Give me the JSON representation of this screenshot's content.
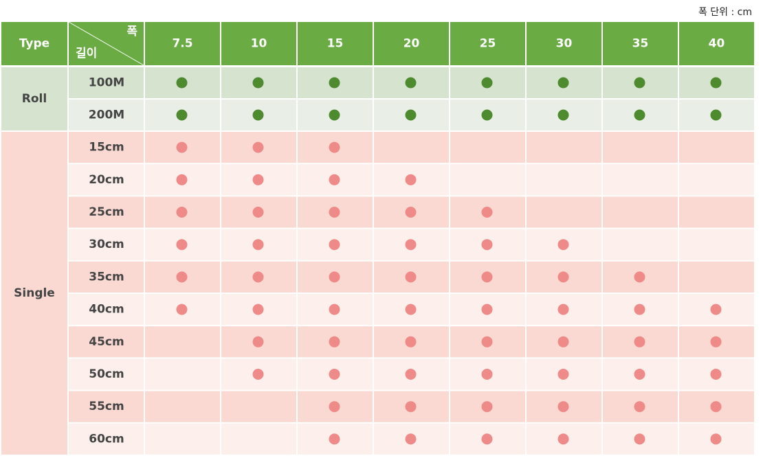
{
  "unit_note": "폭 단위 : cm",
  "header": {
    "type": "Type",
    "width_label": "폭",
    "length_label": "길이",
    "widths": [
      "7.5",
      "10",
      "15",
      "20",
      "25",
      "30",
      "35",
      "40"
    ]
  },
  "groups": [
    {
      "name": "Roll",
      "rows": [
        {
          "length": "100M",
          "available": [
            true,
            true,
            true,
            true,
            true,
            true,
            true,
            true
          ]
        },
        {
          "length": "200M",
          "available": [
            true,
            true,
            true,
            true,
            true,
            true,
            true,
            true
          ]
        }
      ]
    },
    {
      "name": "Single",
      "rows": [
        {
          "length": "15cm",
          "available": [
            true,
            true,
            true,
            false,
            false,
            false,
            false,
            false
          ]
        },
        {
          "length": "20cm",
          "available": [
            true,
            true,
            true,
            true,
            false,
            false,
            false,
            false
          ]
        },
        {
          "length": "25cm",
          "available": [
            true,
            true,
            true,
            true,
            true,
            false,
            false,
            false
          ]
        },
        {
          "length": "30cm",
          "available": [
            true,
            true,
            true,
            true,
            true,
            true,
            false,
            false
          ]
        },
        {
          "length": "35cm",
          "available": [
            true,
            true,
            true,
            true,
            true,
            true,
            true,
            false
          ]
        },
        {
          "length": "40cm",
          "available": [
            true,
            true,
            true,
            true,
            true,
            true,
            true,
            true
          ]
        },
        {
          "length": "45cm",
          "available": [
            false,
            true,
            true,
            true,
            true,
            true,
            true,
            true
          ]
        },
        {
          "length": "50cm",
          "available": [
            false,
            true,
            true,
            true,
            true,
            true,
            true,
            true
          ]
        },
        {
          "length": "55cm",
          "available": [
            false,
            false,
            true,
            true,
            true,
            true,
            true,
            true
          ]
        },
        {
          "length": "60cm",
          "available": [
            false,
            false,
            true,
            true,
            true,
            true,
            true,
            true
          ]
        }
      ]
    }
  ]
}
